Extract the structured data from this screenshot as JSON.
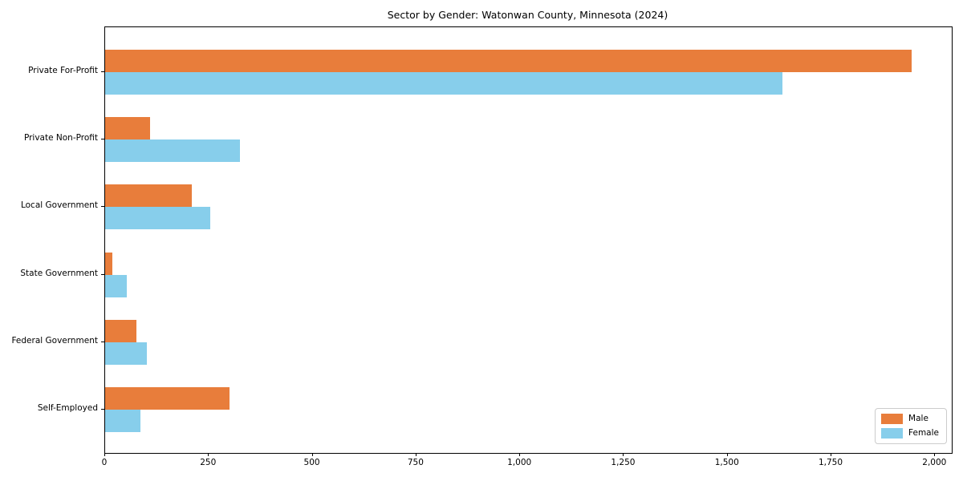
{
  "chart_data": {
    "type": "bar",
    "orientation": "horizontal",
    "title": "Sector by Gender: Watonwan County, Minnesota (2024)",
    "categories": [
      "Private For-Profit",
      "Private Non-Profit",
      "Local Government",
      "State Government",
      "Federal Government",
      "Self-Employed"
    ],
    "series": [
      {
        "name": "Male",
        "color": "#e87d3b",
        "values": [
          1943,
          108,
          208,
          18,
          76,
          300
        ]
      },
      {
        "name": "Female",
        "color": "#87ceeb",
        "values": [
          1632,
          325,
          254,
          53,
          101,
          85
        ]
      }
    ],
    "xlabel": "",
    "ylabel": "",
    "xlim": [
      0,
      2040
    ],
    "x_ticks": [
      0,
      250,
      500,
      750,
      1000,
      1250,
      1500,
      1750,
      2000
    ],
    "x_tick_labels": [
      "0",
      "250",
      "500",
      "750",
      "1,000",
      "1,250",
      "1,500",
      "1,750",
      "2,000"
    ],
    "grid": false,
    "legend_position": "lower right",
    "colors": {
      "male": "#e87d3b",
      "female": "#87ceeb",
      "axis": "#000000",
      "background": "#ffffff"
    }
  }
}
